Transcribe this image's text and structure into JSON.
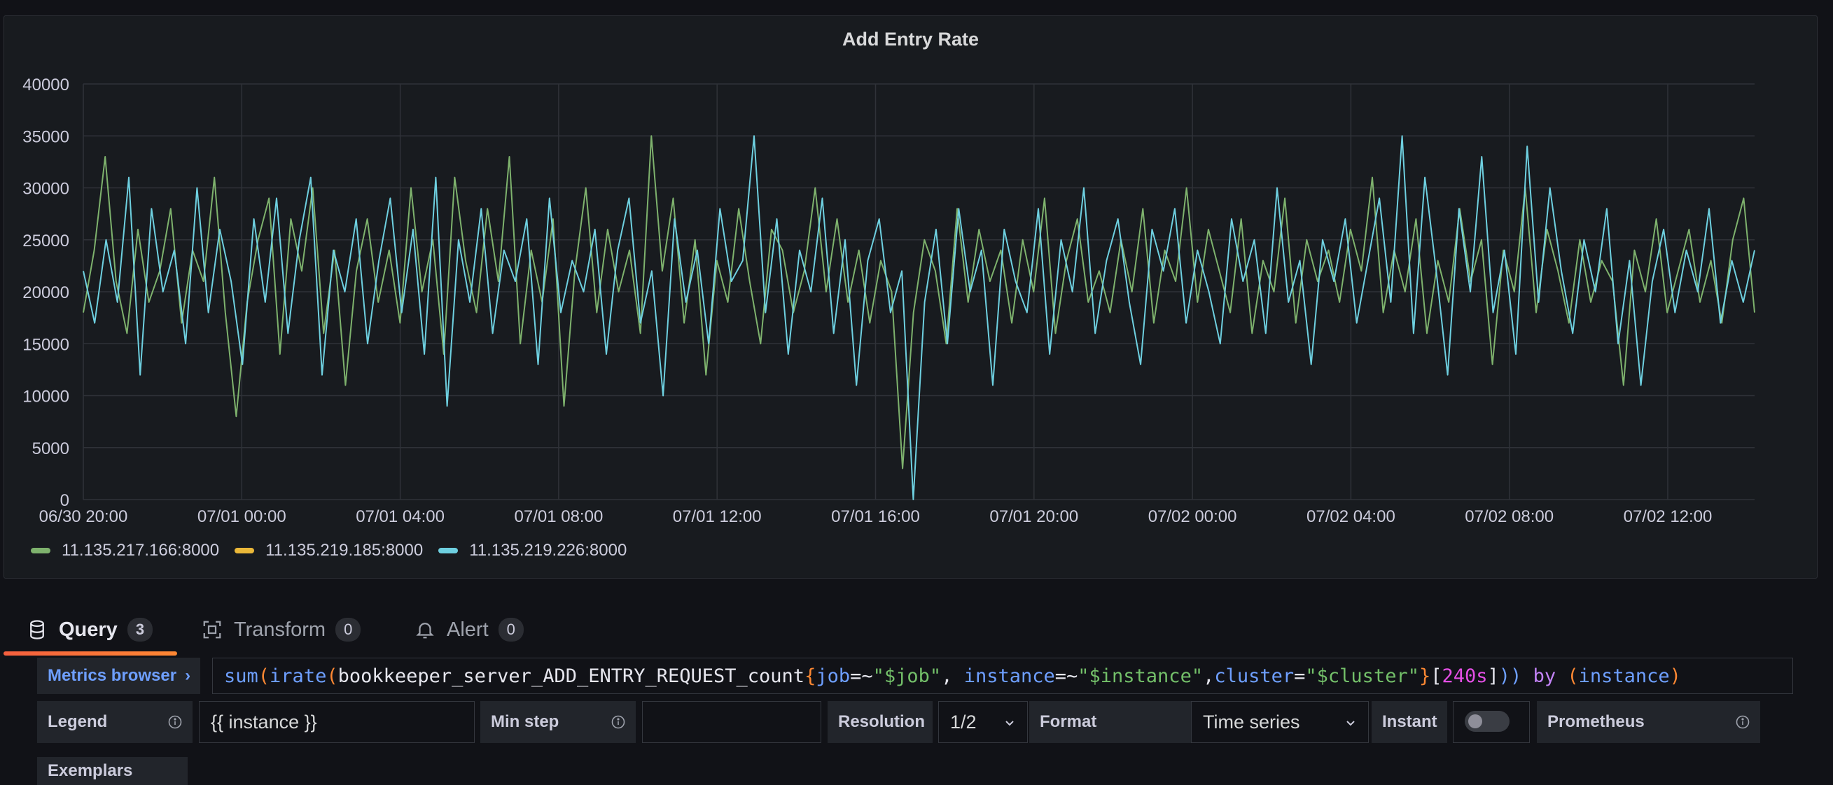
{
  "panel": {
    "title": "Add Entry Rate"
  },
  "chart_data": {
    "type": "line",
    "title": "Add Entry Rate",
    "xlabel": "",
    "ylabel": "",
    "ylim": [
      0,
      40000
    ],
    "y_ticks": [
      "0",
      "5000",
      "10000",
      "15000",
      "20000",
      "25000",
      "30000",
      "35000",
      "40000"
    ],
    "x_ticks": [
      "06/30 20:00",
      "07/01 00:00",
      "07/01 04:00",
      "07/01 08:00",
      "07/01 12:00",
      "07/01 16:00",
      "07/01 20:00",
      "07/02 00:00",
      "07/02 04:00",
      "07/02 08:00",
      "07/02 12:00"
    ],
    "x_range": [
      "06/30 20:00",
      "07/02 14:10"
    ],
    "grid": true,
    "legend_position": "bottom-left",
    "series": [
      {
        "name": "11.135.217.166:8000",
        "color": "#7eb26d",
        "values": [
          18000,
          24000,
          33000,
          21000,
          16000,
          26000,
          19000,
          22000,
          28000,
          17000,
          24000,
          21000,
          31000,
          18000,
          8000,
          19000,
          25000,
          29000,
          14000,
          27000,
          22000,
          30000,
          16000,
          24000,
          11000,
          22000,
          27000,
          19000,
          24000,
          17000,
          30000,
          20000,
          25000,
          14000,
          31000,
          23000,
          18000,
          28000,
          21000,
          33000,
          15000,
          24000,
          19000,
          27000,
          9000,
          22000,
          30000,
          18000,
          26000,
          20000,
          24000,
          16000,
          35000,
          22000,
          29000,
          17000,
          25000,
          12000,
          23000,
          19000,
          28000,
          21000,
          15000,
          26000,
          24000,
          18000,
          22000,
          30000,
          20000,
          27000,
          19000,
          24000,
          17000,
          23000,
          20000,
          3000,
          18000,
          25000,
          22000,
          15000,
          28000,
          19000,
          26000,
          21000,
          24000,
          17000,
          25000,
          20000,
          29000,
          16000,
          23000,
          27000,
          19000,
          22000,
          18000,
          25000,
          20000,
          28000,
          17000,
          24000,
          21000,
          30000,
          19000,
          26000,
          22000,
          18000,
          27000,
          16000,
          23000,
          20000,
          29000,
          17000,
          25000,
          21000,
          24000,
          19000,
          26000,
          22000,
          31000,
          18000,
          24000,
          20000,
          27000,
          16000,
          23000,
          19000,
          28000,
          21000,
          25000,
          13000,
          24000,
          20000,
          30000,
          18000,
          26000,
          22000,
          17000,
          25000,
          19000,
          23000,
          21000,
          11000,
          24000,
          20000,
          27000,
          18000,
          22000,
          26000,
          19000,
          23000,
          17000,
          25000,
          29000,
          18000
        ]
      },
      {
        "name": "11.135.219.185:8000",
        "color": "#eab839",
        "values": []
      },
      {
        "name": "11.135.219.226:8000",
        "color": "#6ed0e0",
        "values": [
          22000,
          17000,
          25000,
          19000,
          31000,
          12000,
          28000,
          20000,
          24000,
          15000,
          30000,
          18000,
          26000,
          21000,
          13000,
          27000,
          19000,
          29000,
          16000,
          25000,
          31000,
          12000,
          24000,
          20000,
          27000,
          15000,
          23000,
          29000,
          18000,
          26000,
          14000,
          31000,
          9000,
          25000,
          19000,
          28000,
          16000,
          24000,
          21000,
          27000,
          13000,
          29000,
          18000,
          23000,
          20000,
          26000,
          14000,
          24000,
          29000,
          17000,
          22000,
          10000,
          27000,
          19000,
          24000,
          15000,
          28000,
          21000,
          23000,
          35000,
          18000,
          27000,
          14000,
          24000,
          20000,
          29000,
          16000,
          25000,
          11000,
          23000,
          27000,
          18000,
          22000,
          0,
          19000,
          26000,
          15000,
          28000,
          20000,
          24000,
          11000,
          26000,
          21000,
          18000,
          28000,
          14000,
          25000,
          20000,
          30000,
          16000,
          23000,
          27000,
          19000,
          13000,
          26000,
          22000,
          28000,
          17000,
          24000,
          20000,
          15000,
          27000,
          21000,
          25000,
          16000,
          30000,
          19000,
          23000,
          13000,
          25000,
          21000,
          27000,
          17000,
          23000,
          29000,
          19000,
          35000,
          16000,
          31000,
          22000,
          12000,
          28000,
          20000,
          33000,
          18000,
          24000,
          14000,
          34000,
          19000,
          30000,
          22000,
          16000,
          25000,
          20000,
          28000,
          15000,
          23000,
          11000,
          21000,
          26000,
          18000,
          24000,
          20000,
          28000,
          17000,
          23000,
          19000,
          24000
        ]
      }
    ]
  },
  "tabs": [
    {
      "label": "Query",
      "count": "3"
    },
    {
      "label": "Transform",
      "count": "0"
    },
    {
      "label": "Alert",
      "count": "0"
    }
  ],
  "query": {
    "metrics_browser": "Metrics browser",
    "expr_parts": {
      "fn1": "sum",
      "p1": "(",
      "fn2": "irate",
      "p2": "(",
      "metric": "bookkeeper_server_ADD_ENTRY_REQUEST_count",
      "b1": "{",
      "l1": "job",
      "o1": "=~",
      "s1": "\"$job\"",
      "c1": ", ",
      "l2": "instance",
      "o2": "=~",
      "s2": "\"$instance\"",
      "c2": ",",
      "l3": "cluster",
      "o3": "=",
      "s3": "\"$cluster\"",
      "b2": "}",
      "r1": "[",
      "dur": "240s",
      "r2": "]",
      "p3": "))",
      "kw": " by ",
      "p4": "(",
      "lab": "instance",
      "p5": ")"
    }
  },
  "options": {
    "legend_label": "Legend",
    "legend_value": "{{ instance }}",
    "min_step_label": "Min step",
    "min_step_value": "",
    "resolution_label": "Resolution",
    "resolution_value": "1/2",
    "format_label": "Format",
    "format_value": "Time series",
    "instant_label": "Instant",
    "prometheus_label": "Prometheus",
    "exemplars_label": "Exemplars"
  }
}
